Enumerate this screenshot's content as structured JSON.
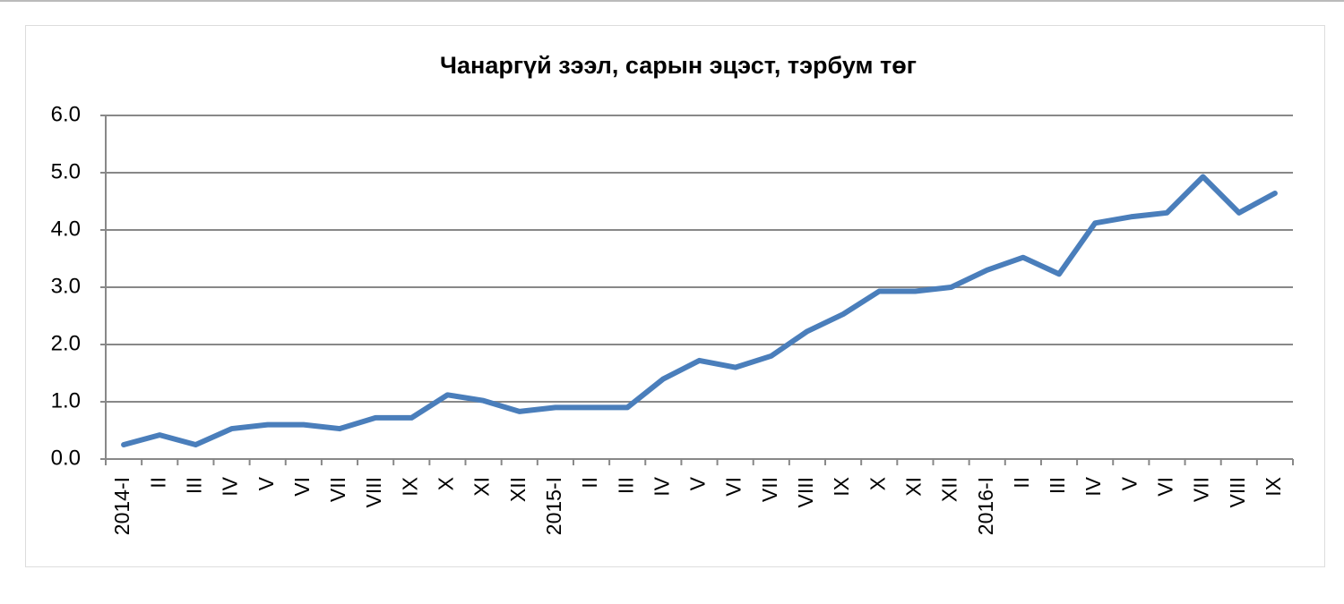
{
  "chart_data": {
    "type": "line",
    "title": "Чанаргүй зээл, сарын эцэст, тэрбум төг",
    "categories": [
      "2014-I",
      "II",
      "III",
      "IV",
      "V",
      "VI",
      "VII",
      "VIII",
      "IX",
      "X",
      "XI",
      "XII",
      "2015-I",
      "II",
      "III",
      "IV",
      "V",
      "VI",
      "VII",
      "VIII",
      "IX",
      "X",
      "XI",
      "XII",
      "2016-I",
      "II",
      "III",
      "IV",
      "V",
      "VI",
      "VII",
      "VIII",
      "IX"
    ],
    "series": [
      {
        "color": "#4a7ebb",
        "values": [
          0.25,
          0.42,
          0.25,
          0.53,
          0.6,
          0.6,
          0.53,
          0.72,
          0.72,
          1.12,
          1.02,
          0.83,
          0.9,
          0.9,
          0.9,
          1.4,
          1.72,
          1.6,
          1.8,
          2.23,
          2.53,
          2.93,
          2.93,
          3.0,
          3.3,
          3.52,
          3.23,
          4.12,
          4.23,
          4.3,
          4.93,
          4.3,
          4.64
        ]
      }
    ],
    "ylim": [
      0,
      6
    ],
    "yticks": [
      {
        "value": 0,
        "label": "0.0"
      },
      {
        "value": 1,
        "label": "1.0"
      },
      {
        "value": 2,
        "label": "2.0"
      },
      {
        "value": 3,
        "label": "3.0"
      },
      {
        "value": 4,
        "label": "4.0"
      },
      {
        "value": 5,
        "label": "5.0"
      },
      {
        "value": 6,
        "label": "6.0"
      }
    ],
    "grid": true
  }
}
